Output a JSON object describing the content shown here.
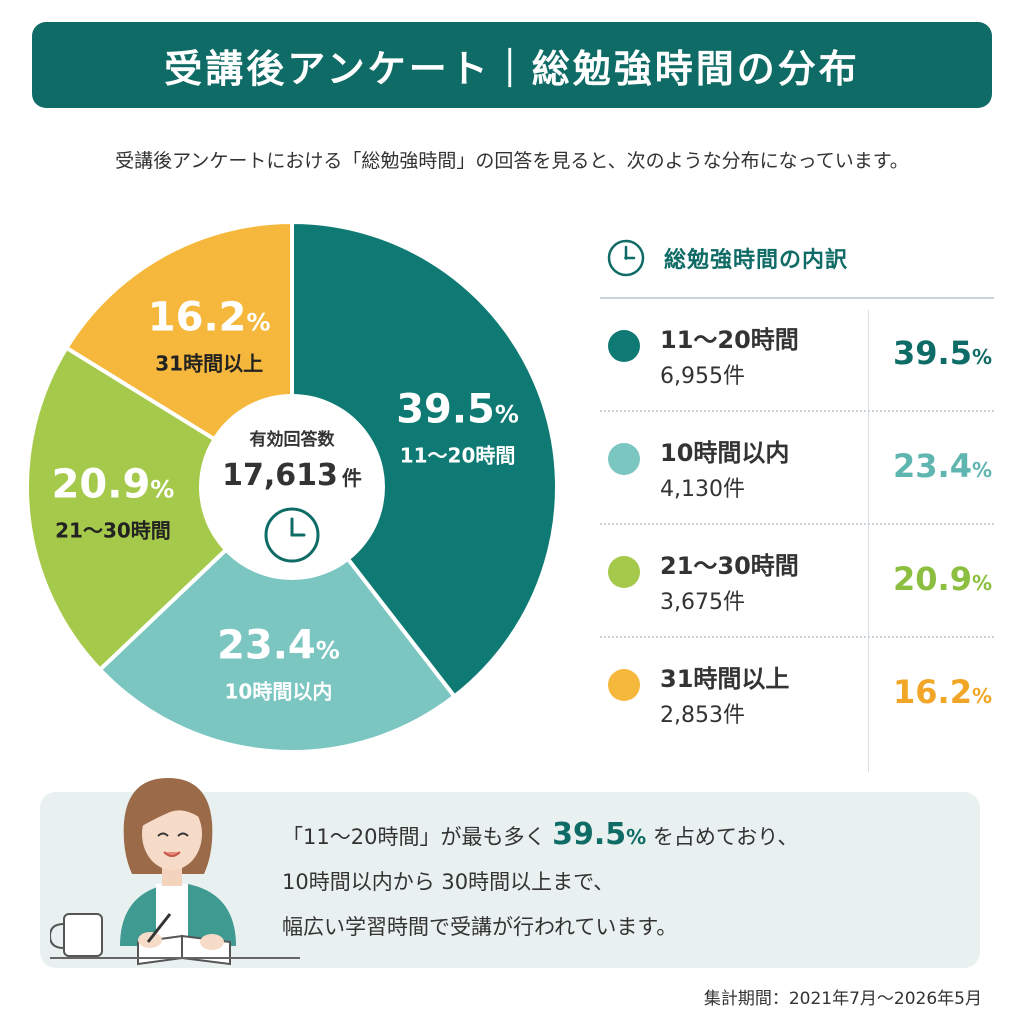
{
  "title": "受講後アンケート｜総勉強時間の分布",
  "intro": "受講後アンケートにおける「総勉強時間」の回答を見ると、次のような分布になっています。",
  "center": {
    "label": "有効回答数",
    "total": "17,613",
    "unit": "件"
  },
  "legend_title": "総勉強時間の内訳",
  "chart_data": {
    "type": "pie",
    "title": "",
    "total_responses": 17613,
    "slices": [
      {
        "label": "11～20時間",
        "value": 39.5,
        "count": "6,955件",
        "color": "#0f7a73",
        "text_color": "#ffffff",
        "pct_color": "#0f6b66"
      },
      {
        "label": "10時間以内",
        "value": 23.4,
        "count": "4,130件",
        "color": "#7cc6c2",
        "text_color": "#ffffff",
        "pct_color": "#5fb5b0"
      },
      {
        "label": "21～30時間",
        "value": 20.9,
        "count": "3,675件",
        "color": "#a5c94a",
        "text_color": "#ffffff",
        "pct_color": "#8cbf3f"
      },
      {
        "label": "31時間以上",
        "value": 16.2,
        "count": "2,853件",
        "color": "#f6b83c",
        "text_color": "#ffffff",
        "pct_color": "#f2a627"
      }
    ],
    "unit": "%"
  },
  "note": {
    "line1_prefix": "「11～20時間」が最も多く",
    "line1_value": "39.5",
    "line1_unit": "%",
    "line1_suffix": "を占めており、",
    "line2": "10時間以内から 30時間以上まで、",
    "line3": "幅広い学習時間で受講が行われています。"
  },
  "period": "集計期間：2021年7月～2026年5月"
}
